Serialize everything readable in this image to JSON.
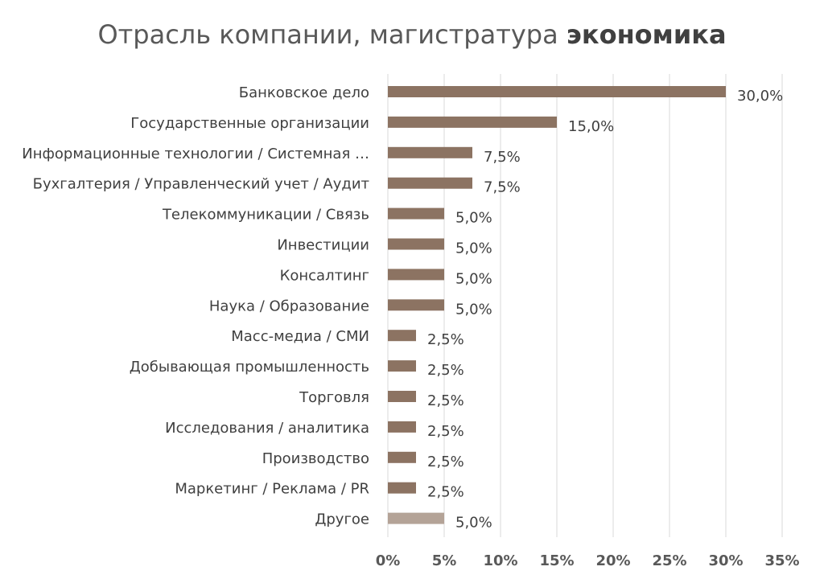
{
  "chart_data": {
    "type": "bar",
    "orientation": "horizontal",
    "title": "Отрасль компании, магистратура ",
    "title_bold": "экономика",
    "categories": [
      "Банковское дело",
      "Государственные организации",
      "Информационные технологии  /  Системная …",
      "Бухгалтерия / Управленческий  учет / Аудит",
      "Телекоммуникации   /  Связь",
      "Инвестиции",
      "Консалтинг",
      "Наука / Образование",
      "Масс-медиа  / СМИ",
      "Добывающая промышленность",
      "Торговля",
      "Исследования  / аналитика",
      "Производство",
      "Маркетинг / Реклама / PR",
      "Другое"
    ],
    "values": [
      30.0,
      15.0,
      7.5,
      7.5,
      5.0,
      5.0,
      5.0,
      5.0,
      2.5,
      2.5,
      2.5,
      2.5,
      2.5,
      2.5,
      5.0
    ],
    "data_labels": [
      "30,0%",
      "15,0%",
      "7,5%",
      "7,5%",
      "5,0%",
      "5,0%",
      "5,0%",
      "5,0%",
      "2,5%",
      "2,5%",
      "2,5%",
      "2,5%",
      "2,5%",
      "2,5%",
      "5,0%"
    ],
    "xlim": [
      0,
      35
    ],
    "xticks": [
      0,
      5,
      10,
      15,
      20,
      25,
      30,
      35
    ],
    "xtick_labels": [
      "0%",
      "5%",
      "10%",
      "15%",
      "20%",
      "25%",
      "30%",
      "35%"
    ],
    "grid": true,
    "legend": "none",
    "colors": {
      "bar": "#8C7362",
      "bar_other": "#B4A397",
      "grid": "#D9D9D9",
      "label": "#404040",
      "title": "#595959"
    }
  }
}
